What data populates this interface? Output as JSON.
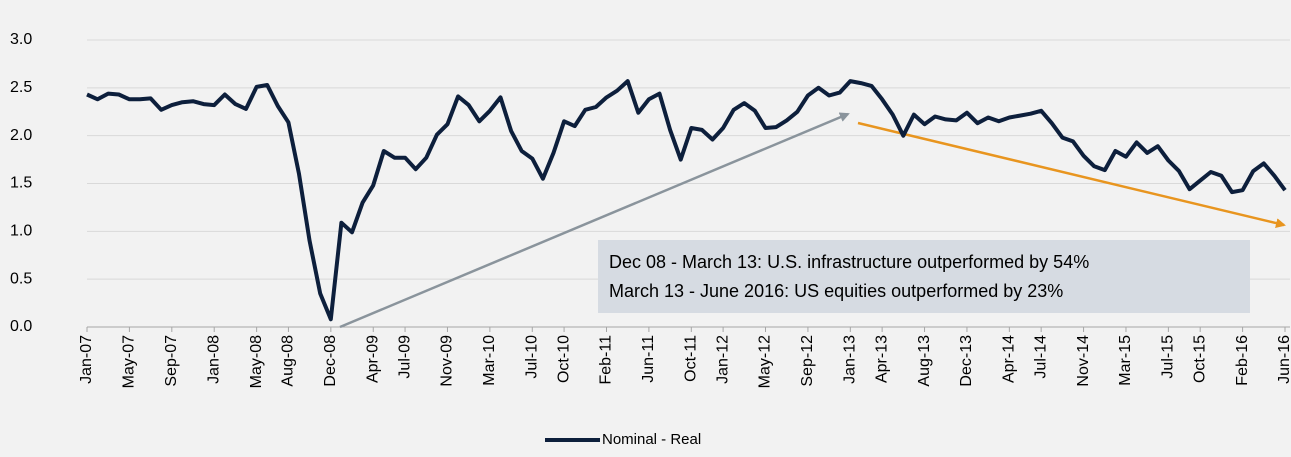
{
  "chart_data": {
    "type": "line",
    "categories": [
      "Jan-07",
      null,
      null,
      null,
      "May-07",
      null,
      null,
      null,
      "Sep-07",
      null,
      null,
      null,
      "Jan-08",
      null,
      null,
      null,
      "May-08",
      null,
      null,
      "Aug-08",
      null,
      null,
      null,
      "Dec-08",
      null,
      null,
      null,
      "Apr-09",
      null,
      null,
      "Jul-09",
      null,
      null,
      null,
      "Nov-09",
      null,
      null,
      null,
      "Mar-10",
      null,
      null,
      null,
      "Jul-10",
      null,
      null,
      "Oct-10",
      null,
      null,
      null,
      "Feb-11",
      null,
      null,
      null,
      "Jun-11",
      null,
      null,
      null,
      "Oct-11",
      null,
      null,
      "Jan-12",
      null,
      null,
      null,
      "May-12",
      null,
      null,
      null,
      "Sep-12",
      null,
      null,
      null,
      "Jan-13",
      null,
      null,
      "Apr-13",
      null,
      null,
      null,
      "Aug-13",
      null,
      null,
      null,
      "Dec-13",
      null,
      null,
      null,
      "Apr-14",
      null,
      null,
      "Jul-14",
      null,
      null,
      null,
      "Nov-14",
      null,
      null,
      null,
      "Mar-15",
      null,
      null,
      null,
      "Jul-15",
      null,
      null,
      "Oct-15",
      null,
      null,
      null,
      "Feb-16",
      null,
      null,
      null,
      "Jun-16"
    ],
    "series": [
      {
        "name": "Nominal - Real",
        "color": "#0d1f3c",
        "values": [
          2.43,
          2.38,
          2.44,
          2.43,
          2.38,
          2.38,
          2.39,
          2.27,
          2.32,
          2.35,
          2.36,
          2.33,
          2.32,
          2.43,
          2.33,
          2.28,
          2.51,
          2.53,
          2.31,
          2.14,
          1.6,
          0.9,
          0.35,
          0.08,
          1.09,
          0.99,
          1.3,
          1.48,
          1.84,
          1.77,
          1.77,
          1.65,
          1.77,
          2.01,
          2.12,
          2.41,
          2.32,
          2.15,
          2.26,
          2.4,
          2.05,
          1.84,
          1.76,
          1.55,
          1.82,
          2.15,
          2.1,
          2.27,
          2.3,
          2.4,
          2.47,
          2.57,
          2.24,
          2.38,
          2.44,
          2.06,
          1.75,
          2.08,
          2.06,
          1.96,
          2.08,
          2.27,
          2.34,
          2.26,
          2.08,
          2.09,
          2.16,
          2.25,
          2.42,
          2.5,
          2.42,
          2.45,
          2.57,
          2.55,
          2.52,
          2.38,
          2.22,
          2.0,
          2.22,
          2.12,
          2.2,
          2.17,
          2.16,
          2.24,
          2.13,
          2.19,
          2.15,
          2.19,
          2.21,
          2.23,
          2.26,
          2.13,
          1.98,
          1.94,
          1.79,
          1.68,
          1.64,
          1.84,
          1.78,
          1.93,
          1.82,
          1.89,
          1.74,
          1.63,
          1.44,
          1.53,
          1.62,
          1.58,
          1.41,
          1.43,
          1.63,
          1.71,
          1.58,
          1.43
        ]
      }
    ],
    "ylim": [
      0,
      3
    ],
    "yticks": [
      {
        "value": 0,
        "label": "0.0"
      },
      0.5,
      {
        "value": 1,
        "label": "1.0"
      },
      1.5,
      {
        "value": 2,
        "label": "2.0"
      },
      2.5,
      {
        "value": 3,
        "label": "3.0"
      }
    ],
    "grid": true,
    "legend": "bottom",
    "annotations": [
      "Dec 08 - March 13: U.S. infrastructure outperformed by 54%",
      "March 13 - June 2016: US equities outperformed by 23%"
    ]
  }
}
